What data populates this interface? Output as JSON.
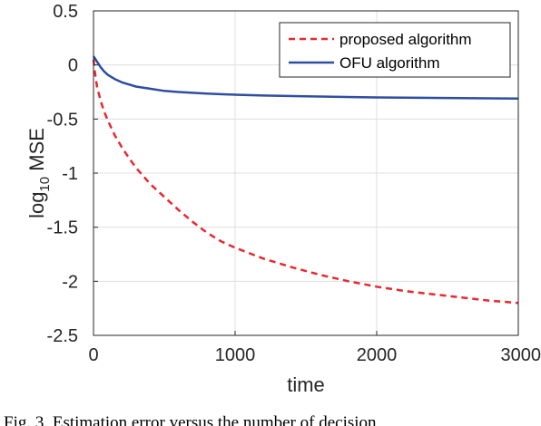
{
  "chart_data": {
    "type": "line",
    "title": "",
    "xlabel": "time",
    "ylabel": {
      "prefix": "log",
      "subscript": "10",
      "suffix": " MSE"
    },
    "xlim": [
      0,
      3000
    ],
    "ylim": [
      -2.5,
      0.5
    ],
    "xticks": [
      0,
      1000,
      2000,
      3000
    ],
    "xtick_labels": [
      "0",
      "1000",
      "2000",
      "3000"
    ],
    "yticks": [
      0.5,
      0,
      -0.5,
      -1,
      -1.5,
      -2,
      -2.5
    ],
    "ytick_labels": [
      "0.5",
      "0",
      "-0.5",
      "-1",
      "-1.5",
      "-2",
      "-2.5"
    ],
    "grid": true,
    "legend_position": "top-right",
    "series": [
      {
        "name": "proposed algorithm",
        "color": "#e8282e",
        "style": "dashed",
        "x": [
          0,
          10,
          25,
          50,
          75,
          100,
          150,
          200,
          250,
          300,
          400,
          500,
          600,
          700,
          800,
          900,
          1000,
          1200,
          1400,
          1600,
          1800,
          2000,
          2200,
          2400,
          2600,
          2800,
          3000
        ],
        "y": [
          0.05,
          -0.07,
          -0.2,
          -0.33,
          -0.43,
          -0.51,
          -0.65,
          -0.76,
          -0.86,
          -0.95,
          -1.1,
          -1.22,
          -1.34,
          -1.45,
          -1.55,
          -1.63,
          -1.69,
          -1.79,
          -1.87,
          -1.94,
          -2.0,
          -2.05,
          -2.09,
          -2.12,
          -2.15,
          -2.18,
          -2.2
        ]
      },
      {
        "name": "OFU algorithm",
        "color": "#2e4ea1",
        "style": "solid",
        "x": [
          0,
          10,
          25,
          50,
          75,
          100,
          150,
          200,
          300,
          400,
          500,
          600,
          800,
          1000,
          1200,
          1500,
          2000,
          2500,
          3000
        ],
        "y": [
          0.08,
          0.06,
          0.03,
          -0.02,
          -0.06,
          -0.09,
          -0.13,
          -0.16,
          -0.2,
          -0.22,
          -0.24,
          -0.25,
          -0.265,
          -0.275,
          -0.283,
          -0.29,
          -0.3,
          -0.305,
          -0.31
        ]
      }
    ]
  },
  "caption": "Fig. 3. Estimation error versus the number of decision"
}
